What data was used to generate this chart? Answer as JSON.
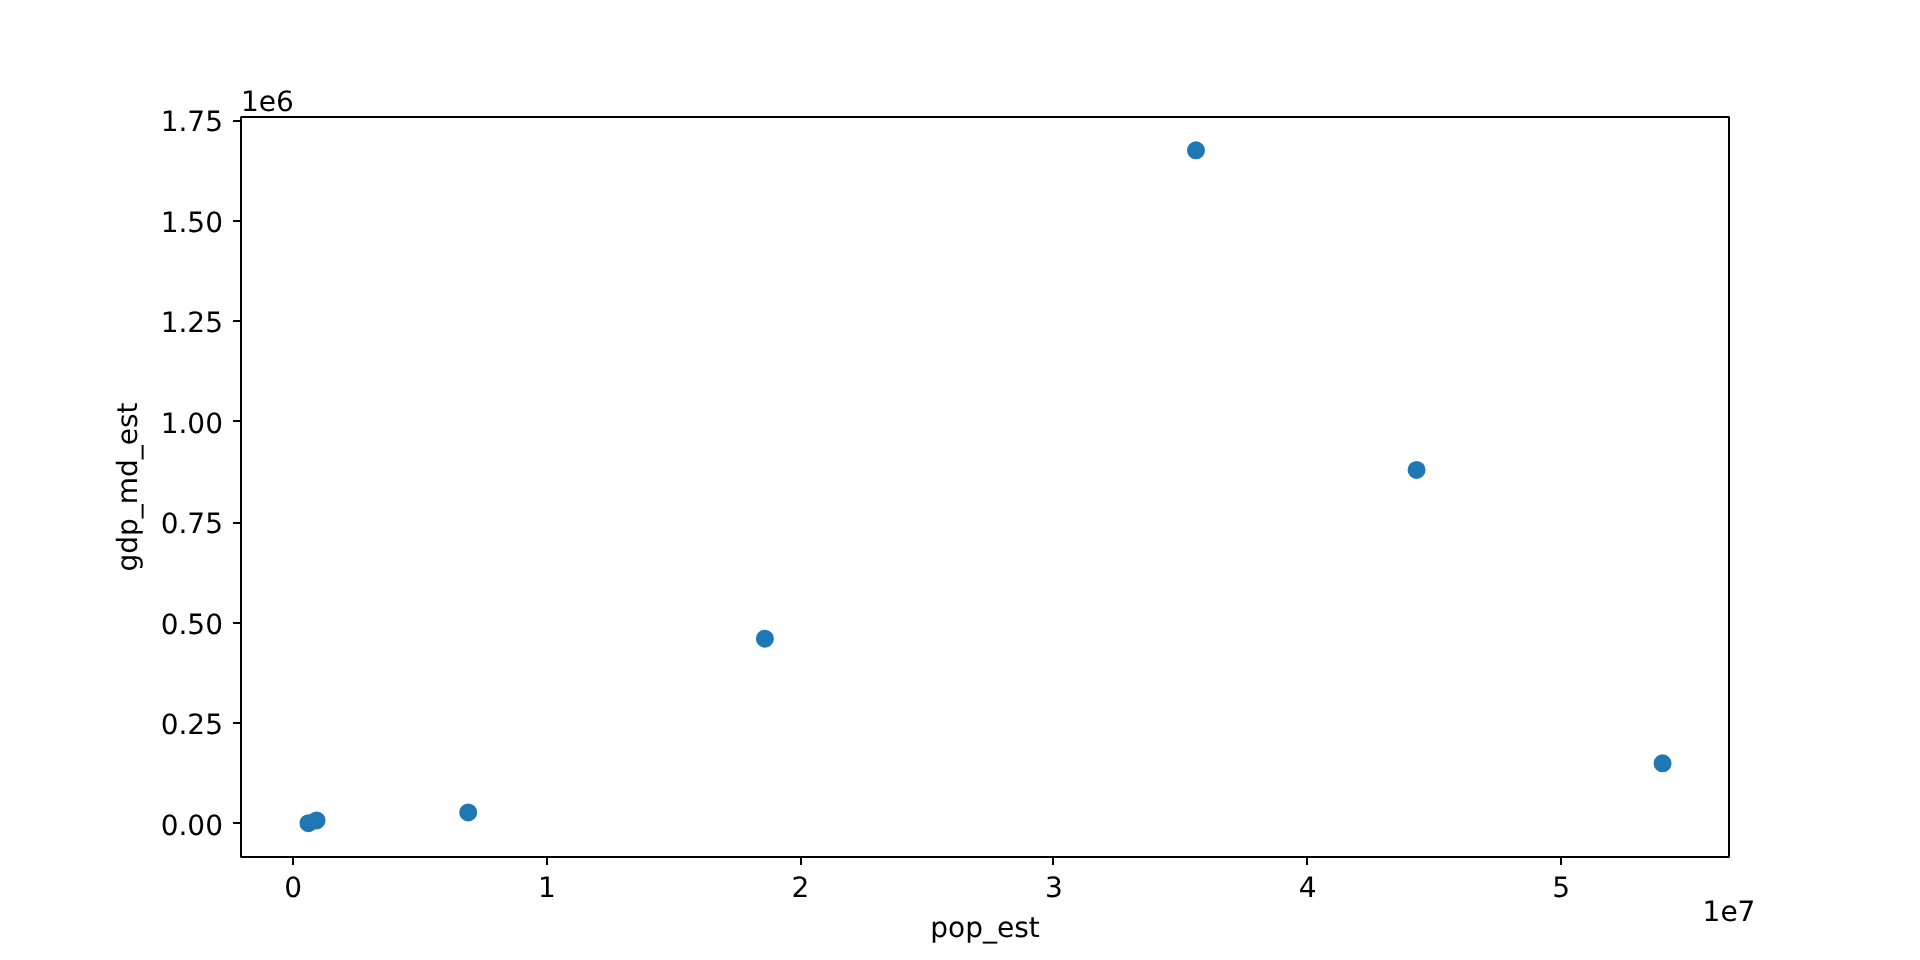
{
  "chart_data": {
    "type": "scatter",
    "xlabel": "pop_est",
    "ylabel": "gdp_md_est",
    "x": [
      0.06,
      0.092,
      0.69,
      1.86,
      3.56,
      4.43,
      5.4
    ],
    "values": [
      0.001,
      0.008,
      0.028,
      0.46,
      1.675,
      0.88,
      0.15
    ],
    "color": "#1f77b4",
    "marker": "circle",
    "xlim": [
      -0.206,
      5.662
    ],
    "ylim": [
      -0.083,
      1.758
    ],
    "xticks": [
      0,
      1,
      2,
      3,
      4,
      5
    ],
    "yticks": [
      {
        "value": 0,
        "label": "0.00"
      },
      0.25,
      {
        "value": 0.5,
        "label": "0.50"
      },
      0.75,
      {
        "value": 1,
        "label": "1.00"
      },
      1.25,
      {
        "value": 1.5,
        "label": "1.50"
      },
      1.75
    ],
    "annotations": [
      "1e6",
      "1e7"
    ]
  }
}
